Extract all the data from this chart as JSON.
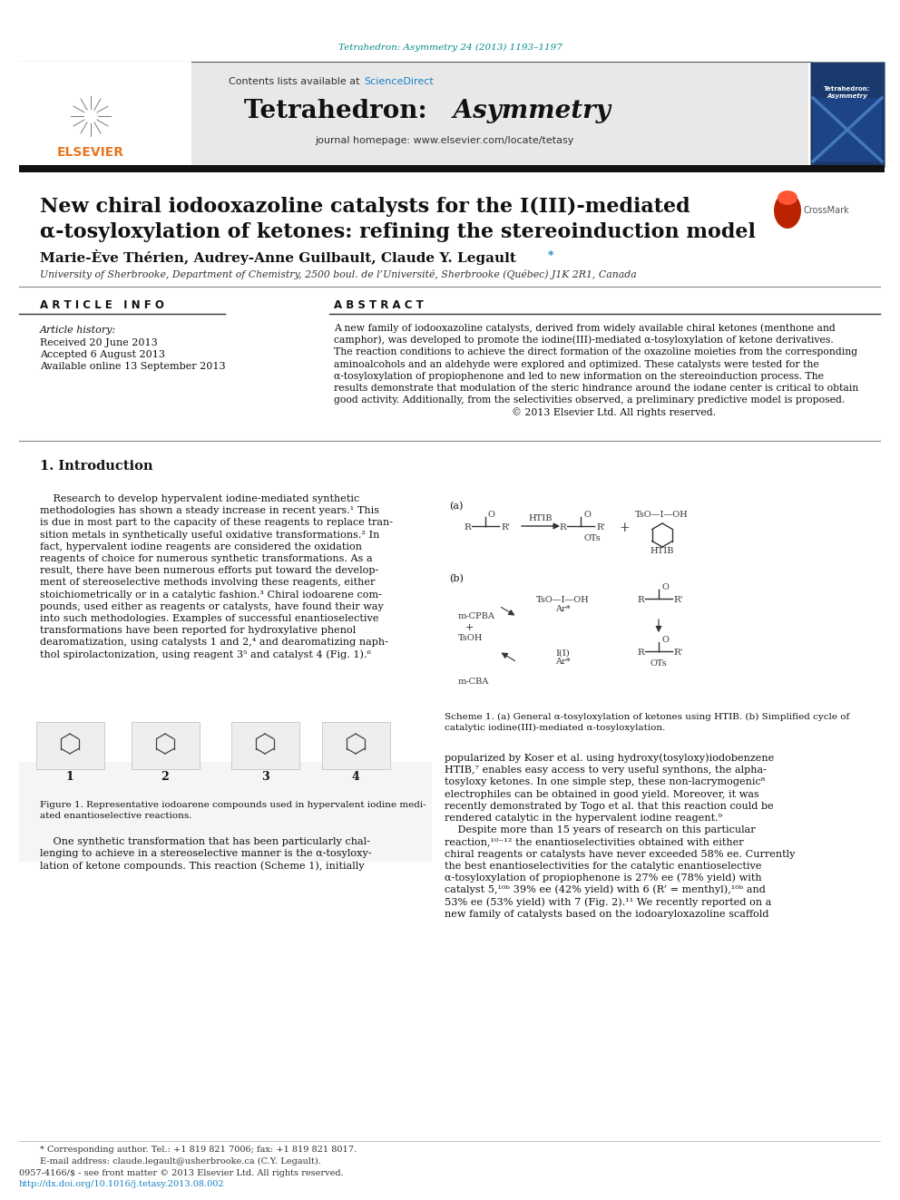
{
  "journal_ref": "Tetrahedron: Asymmetry 24 (2013) 1193–1197",
  "contents_line": "Contents lists available at ScienceDirect",
  "journal_homepage": "journal homepage: www.elsevier.com/locate/tetasy",
  "paper_title_line1": "New chiral iodooxazoline catalysts for the I(III)-mediated",
  "paper_title_line2": "α-tosyloxylation of ketones: refining the stereoinduction model",
  "authors": "Marie-Ève Thérien, Audrey-Anne Guilbault, Claude Y. Legault",
  "affiliation": "University of Sherbrooke, Department of Chemistry, 2500 boul. de l’Université, Sherbrooke (Québec) J1K 2R1, Canada",
  "article_info_header": "A R T I C L E   I N F O",
  "abstract_header": "A B S T R A C T",
  "article_history_label": "Article history:",
  "received": "Received 20 June 2013",
  "accepted": "Accepted 6 August 2013",
  "available": "Available online 13 September 2013",
  "intro_header": "1. Introduction",
  "footer_line1": "* Corresponding author. Tel.: +1 819 821 7006; fax: +1 819 821 8017.",
  "footer_line2": "E-mail address: claude.legault@usherbrooke.ca (C.Y. Legault).",
  "footer_line3": "0957-4166/$ - see front matter © 2013 Elsevier Ltd. All rights reserved.",
  "footer_line4": "http://dx.doi.org/10.1016/j.tetasy.2013.08.002",
  "bg_color": "#ffffff",
  "orange_color": "#E87722",
  "teal_color": "#008B8B",
  "link_color": "#1a80c4",
  "black_bar_color": "#111111"
}
